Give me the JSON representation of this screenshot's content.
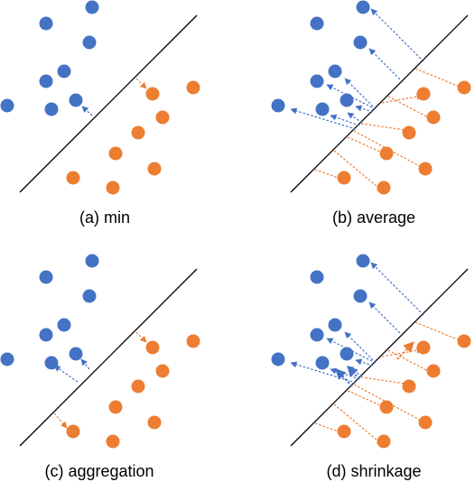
{
  "captions": {
    "a": "(a) min",
    "b": "(b) average",
    "c": "(c) aggregation",
    "d": "(d) shrinkage"
  },
  "colors": {
    "blue": "#4472c4",
    "orange": "#ed7d31",
    "line": "#000000"
  }
}
